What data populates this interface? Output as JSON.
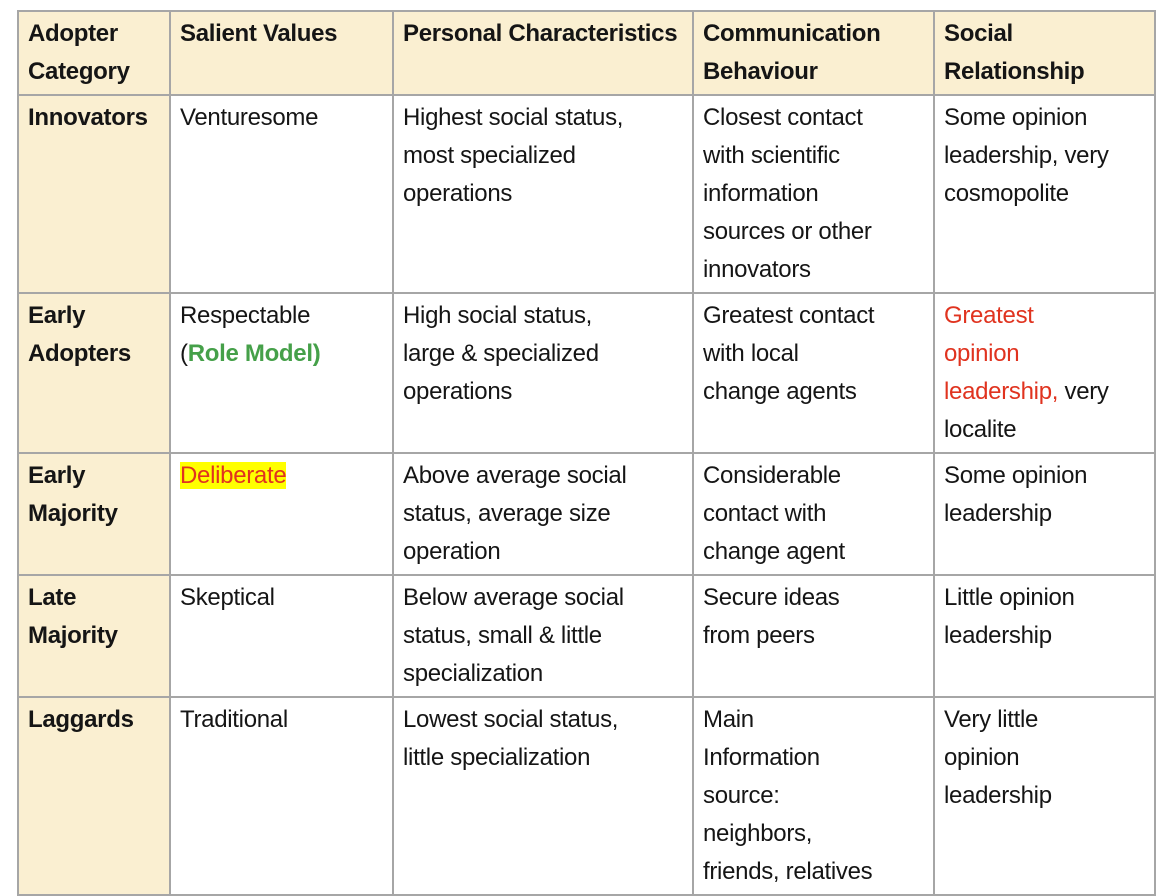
{
  "colors": {
    "header_bg": "#FAEFD1",
    "border": "#A6A6A6",
    "red": "#E0331F",
    "green": "#45A049",
    "highlight": "#FFFF00",
    "text": "#151515"
  },
  "table": {
    "headers": [
      "Adopter Category",
      "Salient Values",
      "Personal Characteristics",
      "Communication Behaviour",
      "Social Relationship"
    ],
    "rows": [
      {
        "category": "Innovators",
        "cells": [
          [
            {
              "text": "Venturesome"
            }
          ],
          [
            {
              "text": "Highest social status,\nmost specialized\noperations"
            }
          ],
          [
            {
              "text": "Closest contact\nwith scientific\ninformation\nsources or other\ninnovators"
            }
          ],
          [
            {
              "text": "Some opinion\nleadership, very\ncosmopolite"
            }
          ]
        ]
      },
      {
        "category": "Early Adopters",
        "cells": [
          [
            {
              "text": "Respectable\n("
            },
            {
              "text": "Role Model)",
              "color": "green",
              "bold": true
            }
          ],
          [
            {
              "text": "High social status,\nlarge & specialized\noperations"
            }
          ],
          [
            {
              "text": "Greatest contact\nwith local\nchange agents"
            }
          ],
          [
            {
              "text": "Greatest\nopinion\nleadership,",
              "color": "red"
            },
            {
              "text": " very\nlocalite"
            }
          ]
        ]
      },
      {
        "category": "Early Majority",
        "cells": [
          [
            {
              "text": "Deliberate",
              "color": "red",
              "highlight": true
            }
          ],
          [
            {
              "text": "Above average social\nstatus, average size\noperation"
            }
          ],
          [
            {
              "text": "Considerable\ncontact with\nchange agent"
            }
          ],
          [
            {
              "text": "Some opinion\nleadership"
            }
          ]
        ]
      },
      {
        "category": "Late Majority",
        "cells": [
          [
            {
              "text": "Skeptical"
            }
          ],
          [
            {
              "text": "Below average social\nstatus, small & little\nspecialization"
            }
          ],
          [
            {
              "text": "Secure ideas\nfrom peers"
            }
          ],
          [
            {
              "text": "Little opinion\nleadership"
            }
          ]
        ]
      },
      {
        "category": "Laggards",
        "cells": [
          [
            {
              "text": "Traditional"
            }
          ],
          [
            {
              "text": "Lowest social status,\nlittle specialization"
            }
          ],
          [
            {
              "text": "Main\nInformation\nsource:\nneighbors,\nfriends, relatives"
            }
          ],
          [
            {
              "text": "Very little\nopinion\nleadership"
            }
          ]
        ]
      }
    ]
  }
}
